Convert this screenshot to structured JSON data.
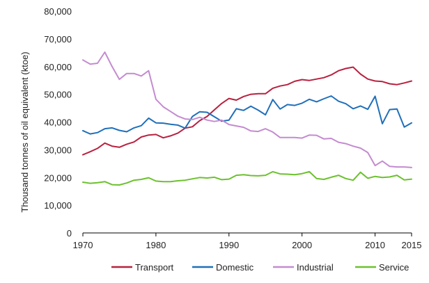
{
  "chart_data": {
    "type": "line",
    "title": "",
    "xlabel": "",
    "ylabel": "Thousand tonnes of oil equivalent  (ktoe)",
    "xlim": [
      1970,
      2015
    ],
    "ylim": [
      0,
      80000
    ],
    "xticks": [
      1970,
      1980,
      1990,
      2000,
      2010,
      2015
    ],
    "xtick_labels": [
      "1970",
      "1980",
      "1990",
      "2000",
      "2010",
      "2015"
    ],
    "yticks": [
      0,
      10000,
      20000,
      30000,
      40000,
      50000,
      60000,
      70000,
      80000
    ],
    "ytick_labels": [
      "0",
      "10,000",
      "20,000",
      "30,000",
      "40,000",
      "50,000",
      "60,000",
      "70,000",
      "80,000"
    ],
    "grid": false,
    "legend_position": "bottom",
    "x": [
      1970,
      1971,
      1972,
      1973,
      1974,
      1975,
      1976,
      1977,
      1978,
      1979,
      1980,
      1981,
      1982,
      1983,
      1984,
      1985,
      1986,
      1987,
      1988,
      1989,
      1990,
      1991,
      1992,
      1993,
      1994,
      1995,
      1996,
      1997,
      1998,
      1999,
      2000,
      2001,
      2002,
      2003,
      2004,
      2005,
      2006,
      2007,
      2008,
      2009,
      2010,
      2011,
      2012,
      2013,
      2014,
      2015
    ],
    "series": [
      {
        "name": "Transport",
        "color": "#b8213f",
        "values": [
          28200,
          29300,
          30500,
          32400,
          31300,
          30900,
          32000,
          32800,
          34600,
          35300,
          35500,
          34300,
          35000,
          36000,
          37800,
          38300,
          40500,
          42000,
          44400,
          46700,
          48500,
          47900,
          49200,
          50000,
          50200,
          50200,
          52200,
          53000,
          53500,
          54700,
          55300,
          55000,
          55500,
          56000,
          57000,
          58500,
          59300,
          59800,
          57300,
          55500,
          54800,
          54600,
          53800,
          53500,
          54100,
          54800
        ]
      },
      {
        "name": "Domestic",
        "color": "#1f6fba",
        "values": [
          36900,
          35700,
          36200,
          37600,
          37900,
          37000,
          36500,
          37900,
          38700,
          41400,
          39700,
          39600,
          39200,
          38900,
          37800,
          42000,
          43700,
          43500,
          41900,
          40300,
          40700,
          44800,
          44200,
          45700,
          44300,
          42600,
          48100,
          44700,
          46300,
          46000,
          46800,
          48200,
          47300,
          48400,
          49400,
          47500,
          46600,
          44800,
          45800,
          44600,
          49300,
          39400,
          44500,
          44700,
          38200,
          39700
        ]
      },
      {
        "name": "Industrial",
        "color": "#c48bd0",
        "values": [
          62400,
          60900,
          61200,
          65200,
          60000,
          55400,
          57500,
          57500,
          56600,
          58500,
          48200,
          45500,
          43800,
          42100,
          41100,
          40900,
          41700,
          40700,
          40200,
          40700,
          39100,
          38600,
          38100,
          36800,
          36600,
          37600,
          36400,
          34400,
          34400,
          34400,
          34200,
          35300,
          35200,
          33900,
          34100,
          32700,
          32200,
          31300,
          30600,
          29000,
          24300,
          25900,
          24000,
          23800,
          23800,
          23600
        ]
      },
      {
        "name": "Service",
        "color": "#6cc12e",
        "values": [
          18300,
          17900,
          18100,
          18500,
          17400,
          17300,
          18000,
          19000,
          19300,
          19900,
          18700,
          18500,
          18500,
          18800,
          19000,
          19500,
          20000,
          19800,
          20100,
          19200,
          19400,
          20800,
          21000,
          20700,
          20600,
          20800,
          22100,
          21300,
          21200,
          21000,
          21400,
          22100,
          19600,
          19300,
          20100,
          20800,
          19600,
          19000,
          21900,
          19700,
          20400,
          20000,
          20200,
          20800,
          19100,
          19400
        ]
      }
    ]
  }
}
